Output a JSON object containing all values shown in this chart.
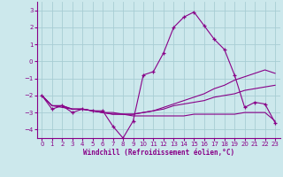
{
  "xlabel": "Windchill (Refroidissement éolien,°C)",
  "background_color": "#cce8ec",
  "grid_color": "#a8cdd4",
  "line_color": "#880088",
  "xlim": [
    -0.5,
    23.5
  ],
  "ylim": [
    -4.5,
    3.5
  ],
  "yticks": [
    -4,
    -3,
    -2,
    -1,
    0,
    1,
    2,
    3
  ],
  "xticks": [
    0,
    1,
    2,
    3,
    4,
    5,
    6,
    7,
    8,
    9,
    10,
    11,
    12,
    13,
    14,
    15,
    16,
    17,
    18,
    19,
    20,
    21,
    22,
    23
  ],
  "line1_x": [
    0,
    1,
    2,
    3,
    4,
    5,
    6,
    7,
    8,
    9,
    10,
    11,
    12,
    13,
    14,
    15,
    16,
    17,
    18,
    19,
    20,
    21,
    22,
    23
  ],
  "line1_y": [
    -2.0,
    -2.8,
    -2.6,
    -3.0,
    -2.8,
    -2.9,
    -2.9,
    -3.8,
    -4.5,
    -3.5,
    -0.8,
    -0.6,
    0.5,
    2.0,
    2.6,
    2.9,
    2.1,
    1.3,
    0.7,
    -0.8,
    -2.7,
    -2.4,
    -2.5,
    -3.6
  ],
  "line2_x": [
    0,
    1,
    2,
    3,
    4,
    5,
    6,
    7,
    8,
    9,
    10,
    11,
    12,
    13,
    14,
    15,
    16,
    17,
    18,
    19,
    20,
    21,
    22,
    23
  ],
  "line2_y": [
    -2.0,
    -2.6,
    -2.6,
    -2.8,
    -2.8,
    -2.9,
    -3.0,
    -3.1,
    -3.1,
    -3.1,
    -3.0,
    -2.9,
    -2.8,
    -2.6,
    -2.5,
    -2.4,
    -2.3,
    -2.1,
    -2.0,
    -1.9,
    -1.7,
    -1.6,
    -1.5,
    -1.4
  ],
  "line3_x": [
    0,
    1,
    2,
    3,
    4,
    5,
    6,
    7,
    8,
    9,
    10,
    11,
    12,
    13,
    14,
    15,
    16,
    17,
    18,
    19,
    20,
    21,
    22,
    23
  ],
  "line3_y": [
    -2.0,
    -2.6,
    -2.6,
    -2.8,
    -2.8,
    -2.9,
    -3.0,
    -3.1,
    -3.1,
    -3.1,
    -3.0,
    -2.9,
    -2.7,
    -2.5,
    -2.3,
    -2.1,
    -1.9,
    -1.6,
    -1.4,
    -1.1,
    -0.9,
    -0.7,
    -0.5,
    -0.7
  ],
  "line4_x": [
    0,
    1,
    2,
    3,
    4,
    5,
    6,
    7,
    8,
    9,
    10,
    11,
    12,
    13,
    14,
    15,
    16,
    17,
    18,
    19,
    20,
    21,
    22,
    23
  ],
  "line4_y": [
    -2.0,
    -2.6,
    -2.7,
    -2.8,
    -2.8,
    -2.9,
    -3.0,
    -3.0,
    -3.1,
    -3.2,
    -3.2,
    -3.2,
    -3.2,
    -3.2,
    -3.2,
    -3.1,
    -3.1,
    -3.1,
    -3.1,
    -3.1,
    -3.0,
    -3.0,
    -3.0,
    -3.5
  ]
}
